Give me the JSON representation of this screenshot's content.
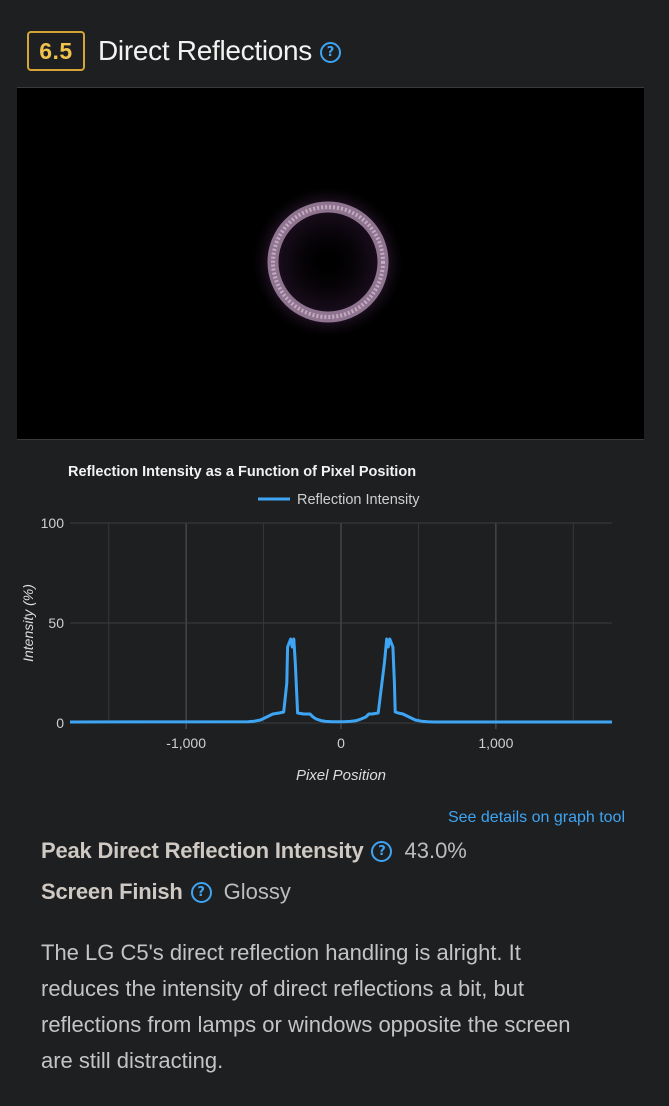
{
  "header": {
    "score": "6.5",
    "title": "Direct Reflections"
  },
  "photo": {
    "description_icon": "reflection-ring-image"
  },
  "chart_data": {
    "type": "line",
    "title": "Reflection Intensity as a Function of Pixel Position",
    "xlabel": "Pixel Position",
    "ylabel": "Intensity (%)",
    "xlim": [
      -1750,
      1750
    ],
    "ylim": [
      0,
      100
    ],
    "xticks": [
      -1000,
      0,
      1000
    ],
    "xtick_labels": [
      "-1,000",
      "0",
      "1,000"
    ],
    "yticks": [
      0,
      50,
      100
    ],
    "ytick_labels": [
      "0",
      "50",
      "100"
    ],
    "grid": true,
    "legend": "top",
    "series": [
      {
        "name": "Reflection Intensity",
        "color": "#3da5f4",
        "x": [
          -1750,
          -600,
          -560,
          -520,
          -480,
          -440,
          -400,
          -370,
          -350,
          -345,
          -335,
          -325,
          -315,
          -305,
          -295,
          -280,
          -240,
          -200,
          -180,
          -160,
          -130,
          -100,
          -60,
          -20,
          20,
          60,
          100,
          130,
          160,
          180,
          200,
          240,
          280,
          295,
          305,
          315,
          325,
          335,
          345,
          350,
          370,
          400,
          440,
          480,
          520,
          560,
          600,
          1750
        ],
        "values": [
          0.5,
          0.6,
          0.9,
          1.5,
          3.0,
          4.5,
          5.0,
          5.5,
          20,
          38,
          40,
          42,
          38,
          42,
          30,
          5,
          4.5,
          4.5,
          3.0,
          2.0,
          1.2,
          0.8,
          0.6,
          0.6,
          0.6,
          0.8,
          1.2,
          2.0,
          3.0,
          4.5,
          4.5,
          5.0,
          30,
          42,
          38,
          42,
          40,
          38,
          20,
          5.5,
          5.0,
          4.5,
          3.0,
          1.5,
          0.9,
          0.6,
          0.5,
          0.5
        ]
      }
    ]
  },
  "graph_link": "See details on graph tool",
  "specs": [
    {
      "label": "Peak Direct Reflection Intensity",
      "value": "43.0%"
    },
    {
      "label": "Screen Finish",
      "value": "Glossy"
    }
  ],
  "description": "The LG C5's direct reflection handling is alright. It reduces the intensity of direct reflections a bit, but reflections from lamps or windows opposite the screen are still distracting."
}
